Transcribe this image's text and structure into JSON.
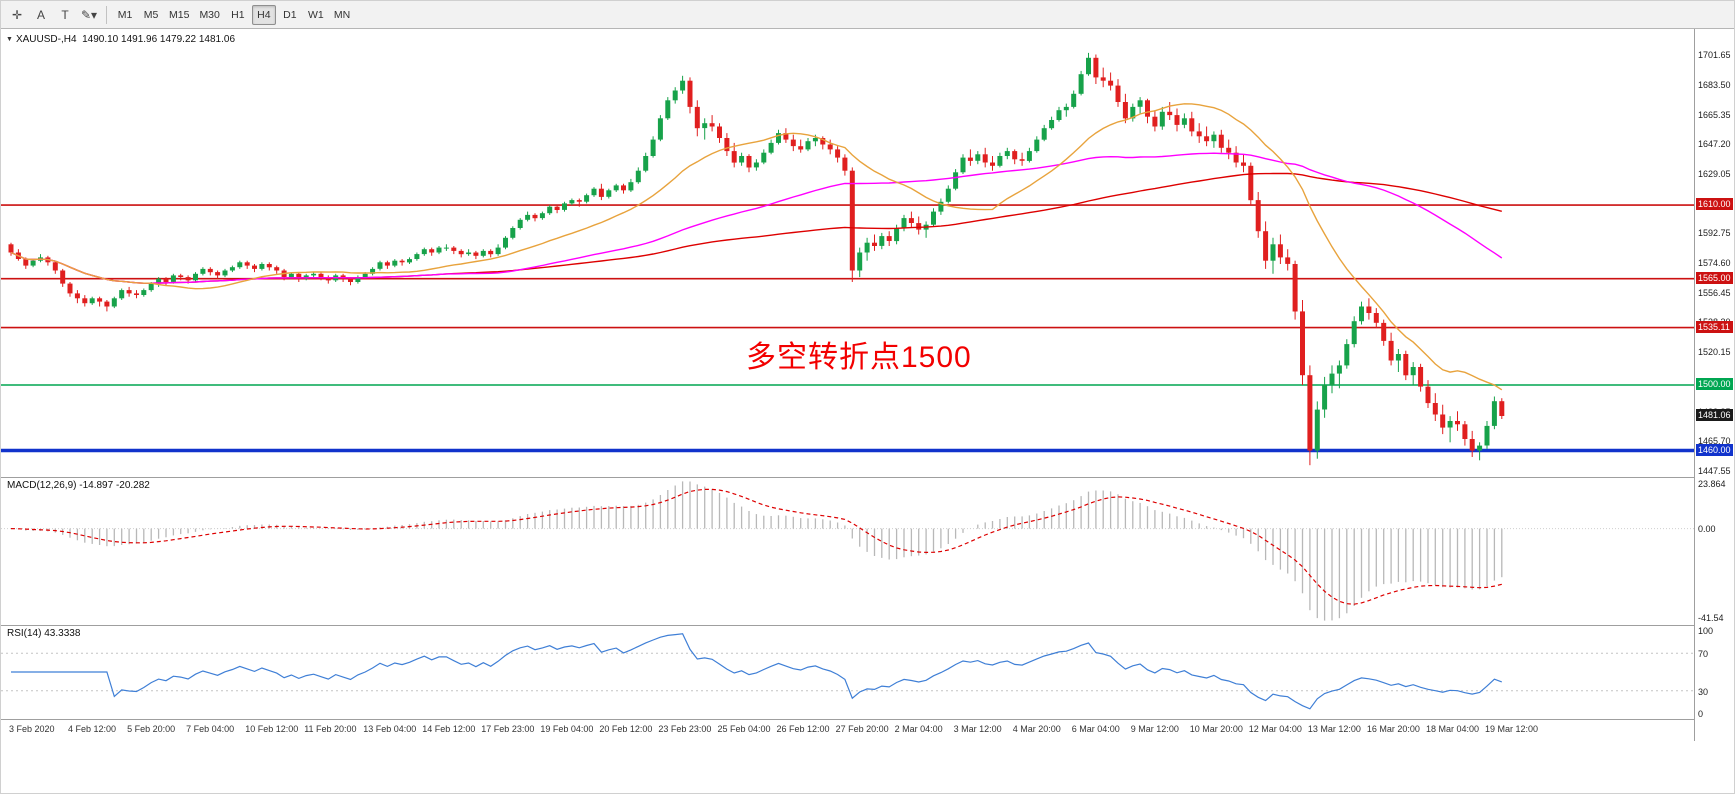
{
  "toolbar": {
    "left_buttons": [
      {
        "name": "cursor-tool",
        "glyph": "✛"
      },
      {
        "name": "text-a-tool",
        "glyph": "A"
      },
      {
        "name": "text-t-tool",
        "glyph": "T"
      },
      {
        "name": "draw-tool",
        "glyph": "✎",
        "caret": "▾"
      }
    ],
    "timeframes": [
      "M1",
      "M5",
      "M15",
      "M30",
      "H1",
      "H4",
      "D1",
      "W1",
      "MN"
    ],
    "active_timeframe": "H4"
  },
  "chart_header": {
    "dropdown_glyph": "▼",
    "symbol_timeframe": "XAUUSD-,H4",
    "ohlc": "1490.10 1491.96 1479.22 1481.06"
  },
  "annotation": {
    "text": "多空转折点1500"
  },
  "levels": [
    {
      "label": "1610.00",
      "value": 1610.0,
      "color": "#cc1111",
      "width": 1.6
    },
    {
      "label": "1565.00",
      "value": 1565.0,
      "color": "#cc1111",
      "width": 1.6
    },
    {
      "label": "1535.11",
      "value": 1535.11,
      "color": "#cc1111",
      "width": 1.6
    },
    {
      "label": "1500.00",
      "value": 1500.0,
      "color": "#00a651",
      "width": 1.6
    },
    {
      "label": "1460.00",
      "value": 1460.0,
      "color": "#1133cc",
      "width": 3.5
    }
  ],
  "current_price": {
    "label": "1481.06",
    "value": 1481.06,
    "tag_color": "#1a1a1a"
  },
  "price_axis": {
    "values": [
      1701.65,
      1683.5,
      1665.35,
      1647.2,
      1629.05,
      1610.9,
      1592.75,
      1574.6,
      1556.45,
      1538.3,
      1520.15,
      1502.0,
      1483.85,
      1465.7,
      1447.55
    ]
  },
  "colors": {
    "up": "#17a24a",
    "down": "#e01f1f",
    "ma_fast": "#e8a33d",
    "ma_mid": "#ff00ff",
    "ma_slow": "#dd0000",
    "macd_hist": "#b8b8b8",
    "macd_signal": "#dd0000",
    "rsi_line": "#3f7fd6",
    "annotation": "#f20000"
  },
  "chart_data": {
    "type": "candlestick",
    "symbol": "XAUUSD-",
    "timeframe": "H4",
    "ohlc_current": {
      "open": 1490.1,
      "high": 1491.96,
      "low": 1479.22,
      "close": 1481.06
    },
    "price_range": [
      1443.8,
      1717.6
    ],
    "candles": [
      [
        1586,
        1587,
        1579,
        1581
      ],
      [
        1581,
        1583,
        1576,
        1577
      ],
      [
        1577,
        1578,
        1571,
        1573
      ],
      [
        1573,
        1577,
        1572,
        1576
      ],
      [
        1576,
        1580,
        1575,
        1578
      ],
      [
        1578,
        1579,
        1573,
        1575
      ],
      [
        1575,
        1576,
        1568,
        1570
      ],
      [
        1570,
        1571,
        1560,
        1562
      ],
      [
        1562,
        1563,
        1554,
        1556
      ],
      [
        1556,
        1558,
        1550,
        1553
      ],
      [
        1553,
        1555,
        1548,
        1550
      ],
      [
        1550,
        1554,
        1549,
        1553
      ],
      [
        1553,
        1554,
        1548,
        1551
      ],
      [
        1551,
        1552,
        1545,
        1548
      ],
      [
        1548,
        1554,
        1547,
        1553
      ],
      [
        1553,
        1559,
        1552,
        1558
      ],
      [
        1558,
        1560,
        1554,
        1556
      ],
      [
        1556,
        1558,
        1553,
        1555
      ],
      [
        1555,
        1559,
        1554,
        1558
      ],
      [
        1558,
        1563,
        1557,
        1562
      ],
      [
        1562,
        1566,
        1560,
        1565
      ],
      [
        1565,
        1566,
        1561,
        1563
      ],
      [
        1563,
        1568,
        1562,
        1567
      ],
      [
        1567,
        1568,
        1564,
        1566
      ],
      [
        1566,
        1567,
        1562,
        1564
      ],
      [
        1564,
        1569,
        1563,
        1568
      ],
      [
        1568,
        1572,
        1567,
        1571
      ],
      [
        1571,
        1572,
        1567,
        1569
      ],
      [
        1569,
        1570,
        1565,
        1567
      ],
      [
        1567,
        1571,
        1566,
        1570
      ],
      [
        1570,
        1573,
        1569,
        1572
      ],
      [
        1572,
        1576,
        1571,
        1575
      ],
      [
        1575,
        1576,
        1571,
        1573
      ],
      [
        1573,
        1574,
        1569,
        1571
      ],
      [
        1571,
        1575,
        1570,
        1574
      ],
      [
        1574,
        1575,
        1570,
        1572
      ],
      [
        1572,
        1573,
        1568,
        1570
      ],
      [
        1570,
        1571,
        1564,
        1566
      ],
      [
        1566,
        1569,
        1565,
        1568
      ],
      [
        1568,
        1569,
        1563,
        1565
      ],
      [
        1565,
        1568,
        1564,
        1567
      ],
      [
        1567,
        1569,
        1566,
        1568
      ],
      [
        1568,
        1569,
        1564,
        1566
      ],
      [
        1566,
        1567,
        1562,
        1564
      ],
      [
        1564,
        1568,
        1563,
        1567
      ],
      [
        1567,
        1568,
        1563,
        1565
      ],
      [
        1565,
        1566,
        1561,
        1563
      ],
      [
        1563,
        1567,
        1562,
        1566
      ],
      [
        1566,
        1569,
        1565,
        1568
      ],
      [
        1568,
        1572,
        1567,
        1571
      ],
      [
        1571,
        1576,
        1570,
        1575
      ],
      [
        1575,
        1576,
        1571,
        1573
      ],
      [
        1573,
        1577,
        1572,
        1576
      ],
      [
        1576,
        1577,
        1573,
        1575
      ],
      [
        1575,
        1578,
        1574,
        1577
      ],
      [
        1577,
        1581,
        1576,
        1580
      ],
      [
        1580,
        1584,
        1579,
        1583
      ],
      [
        1583,
        1584,
        1579,
        1581
      ],
      [
        1581,
        1585,
        1580,
        1584
      ],
      [
        1584,
        1586,
        1582,
        1584
      ],
      [
        1584,
        1585,
        1580,
        1582
      ],
      [
        1582,
        1583,
        1578,
        1580
      ],
      [
        1580,
        1583,
        1579,
        1581
      ],
      [
        1581,
        1582,
        1577,
        1579
      ],
      [
        1579,
        1583,
        1578,
        1582
      ],
      [
        1582,
        1583,
        1578,
        1580
      ],
      [
        1580,
        1586,
        1579,
        1584
      ],
      [
        1584,
        1591,
        1583,
        1590
      ],
      [
        1590,
        1597,
        1589,
        1596
      ],
      [
        1596,
        1602,
        1595,
        1601
      ],
      [
        1601,
        1606,
        1600,
        1604
      ],
      [
        1604,
        1605,
        1600,
        1602
      ],
      [
        1602,
        1606,
        1601,
        1605
      ],
      [
        1605,
        1610,
        1604,
        1609
      ],
      [
        1609,
        1610,
        1605,
        1607
      ],
      [
        1607,
        1612,
        1606,
        1611
      ],
      [
        1611,
        1614,
        1610,
        1613
      ],
      [
        1613,
        1614,
        1609,
        1612
      ],
      [
        1612,
        1617,
        1611,
        1616
      ],
      [
        1616,
        1621,
        1615,
        1620
      ],
      [
        1620,
        1623,
        1613,
        1615
      ],
      [
        1615,
        1620,
        1614,
        1619
      ],
      [
        1619,
        1623,
        1618,
        1622
      ],
      [
        1622,
        1623,
        1617,
        1619
      ],
      [
        1619,
        1626,
        1618,
        1624
      ],
      [
        1624,
        1633,
        1623,
        1631
      ],
      [
        1631,
        1642,
        1630,
        1640
      ],
      [
        1640,
        1652,
        1639,
        1650
      ],
      [
        1650,
        1665,
        1649,
        1663
      ],
      [
        1663,
        1676,
        1662,
        1674
      ],
      [
        1674,
        1682,
        1672,
        1680
      ],
      [
        1680,
        1689,
        1678,
        1686
      ],
      [
        1686,
        1688,
        1666,
        1670
      ],
      [
        1670,
        1674,
        1652,
        1657
      ],
      [
        1657,
        1663,
        1650,
        1660
      ],
      [
        1660,
        1665,
        1655,
        1658
      ],
      [
        1658,
        1660,
        1648,
        1651
      ],
      [
        1651,
        1654,
        1640,
        1643
      ],
      [
        1643,
        1648,
        1633,
        1636
      ],
      [
        1636,
        1642,
        1634,
        1640
      ],
      [
        1640,
        1641,
        1630,
        1633
      ],
      [
        1633,
        1638,
        1631,
        1636
      ],
      [
        1636,
        1644,
        1635,
        1642
      ],
      [
        1642,
        1650,
        1641,
        1648
      ],
      [
        1648,
        1656,
        1647,
        1654
      ],
      [
        1654,
        1657,
        1648,
        1650
      ],
      [
        1650,
        1653,
        1643,
        1646
      ],
      [
        1646,
        1650,
        1642,
        1644
      ],
      [
        1644,
        1651,
        1643,
        1649
      ],
      [
        1649,
        1653,
        1646,
        1651
      ],
      [
        1651,
        1652,
        1644,
        1647
      ],
      [
        1647,
        1650,
        1641,
        1644
      ],
      [
        1644,
        1646,
        1636,
        1639
      ],
      [
        1639,
        1641,
        1628,
        1631
      ],
      [
        1631,
        1633,
        1563,
        1570
      ],
      [
        1570,
        1584,
        1566,
        1581
      ],
      [
        1581,
        1590,
        1576,
        1587
      ],
      [
        1587,
        1592,
        1582,
        1585
      ],
      [
        1585,
        1593,
        1583,
        1591
      ],
      [
        1591,
        1594,
        1585,
        1588
      ],
      [
        1588,
        1598,
        1586,
        1596
      ],
      [
        1596,
        1604,
        1594,
        1602
      ],
      [
        1602,
        1606,
        1596,
        1599
      ],
      [
        1599,
        1603,
        1592,
        1595
      ],
      [
        1595,
        1600,
        1590,
        1598
      ],
      [
        1598,
        1608,
        1597,
        1606
      ],
      [
        1606,
        1614,
        1604,
        1612
      ],
      [
        1612,
        1622,
        1611,
        1620
      ],
      [
        1620,
        1632,
        1619,
        1630
      ],
      [
        1630,
        1641,
        1629,
        1639
      ],
      [
        1639,
        1644,
        1634,
        1637
      ],
      [
        1637,
        1643,
        1635,
        1641
      ],
      [
        1641,
        1645,
        1633,
        1636
      ],
      [
        1636,
        1640,
        1631,
        1634
      ],
      [
        1634,
        1642,
        1633,
        1640
      ],
      [
        1640,
        1645,
        1638,
        1643
      ],
      [
        1643,
        1644,
        1635,
        1638
      ],
      [
        1638,
        1642,
        1634,
        1637
      ],
      [
        1637,
        1645,
        1636,
        1643
      ],
      [
        1643,
        1652,
        1642,
        1650
      ],
      [
        1650,
        1659,
        1649,
        1657
      ],
      [
        1657,
        1664,
        1656,
        1662
      ],
      [
        1662,
        1670,
        1661,
        1668
      ],
      [
        1668,
        1672,
        1664,
        1670
      ],
      [
        1670,
        1680,
        1669,
        1678
      ],
      [
        1678,
        1692,
        1677,
        1690
      ],
      [
        1690,
        1703,
        1689,
        1700
      ],
      [
        1700,
        1702,
        1684,
        1688
      ],
      [
        1688,
        1694,
        1682,
        1686
      ],
      [
        1686,
        1691,
        1680,
        1683
      ],
      [
        1683,
        1687,
        1670,
        1673
      ],
      [
        1673,
        1678,
        1660,
        1663
      ],
      [
        1663,
        1672,
        1661,
        1670
      ],
      [
        1670,
        1676,
        1666,
        1674
      ],
      [
        1674,
        1675,
        1660,
        1664
      ],
      [
        1664,
        1668,
        1655,
        1658
      ],
      [
        1658,
        1670,
        1656,
        1667
      ],
      [
        1667,
        1673,
        1662,
        1665
      ],
      [
        1665,
        1669,
        1655,
        1659
      ],
      [
        1659,
        1666,
        1657,
        1663
      ],
      [
        1663,
        1667,
        1652,
        1655
      ],
      [
        1655,
        1660,
        1648,
        1652
      ],
      [
        1652,
        1658,
        1646,
        1649
      ],
      [
        1649,
        1655,
        1645,
        1653
      ],
      [
        1653,
        1656,
        1642,
        1645
      ],
      [
        1645,
        1650,
        1638,
        1642
      ],
      [
        1642,
        1646,
        1633,
        1636
      ],
      [
        1636,
        1641,
        1630,
        1634
      ],
      [
        1634,
        1636,
        1610,
        1613
      ],
      [
        1613,
        1618,
        1590,
        1594
      ],
      [
        1594,
        1600,
        1571,
        1576
      ],
      [
        1576,
        1590,
        1568,
        1586
      ],
      [
        1586,
        1592,
        1574,
        1578
      ],
      [
        1578,
        1583,
        1570,
        1574
      ],
      [
        1574,
        1576,
        1540,
        1545
      ],
      [
        1545,
        1552,
        1500,
        1506
      ],
      [
        1506,
        1512,
        1451,
        1460
      ],
      [
        1460,
        1490,
        1455,
        1485
      ],
      [
        1485,
        1505,
        1480,
        1500
      ],
      [
        1500,
        1512,
        1495,
        1507
      ],
      [
        1507,
        1515,
        1498,
        1512
      ],
      [
        1512,
        1528,
        1510,
        1525
      ],
      [
        1525,
        1542,
        1523,
        1539
      ],
      [
        1539,
        1551,
        1537,
        1548
      ],
      [
        1548,
        1553,
        1540,
        1544
      ],
      [
        1544,
        1547,
        1535,
        1538
      ],
      [
        1538,
        1540,
        1524,
        1527
      ],
      [
        1527,
        1532,
        1512,
        1515
      ],
      [
        1515,
        1522,
        1508,
        1519
      ],
      [
        1519,
        1521,
        1503,
        1506
      ],
      [
        1506,
        1514,
        1500,
        1511
      ],
      [
        1511,
        1513,
        1496,
        1499
      ],
      [
        1499,
        1503,
        1486,
        1489
      ],
      [
        1489,
        1495,
        1478,
        1482
      ],
      [
        1482,
        1488,
        1470,
        1474
      ],
      [
        1474,
        1481,
        1465,
        1478
      ],
      [
        1478,
        1484,
        1472,
        1476
      ],
      [
        1476,
        1478,
        1463,
        1467
      ],
      [
        1467,
        1472,
        1456,
        1460
      ],
      [
        1460,
        1465,
        1454,
        1463
      ],
      [
        1463,
        1478,
        1461,
        1475
      ],
      [
        1475,
        1493,
        1473,
        1490.1
      ],
      [
        1490.1,
        1491.96,
        1479.22,
        1481.06
      ]
    ],
    "date_labels": [
      "3 Feb 2020",
      "4 Feb 12:00",
      "5 Feb 20:00",
      "7 Feb 04:00",
      "10 Feb 12:00",
      "11 Feb 20:00",
      "13 Feb 04:00",
      "14 Feb 12:00",
      "17 Feb 23:00",
      "19 Feb 04:00",
      "20 Feb 12:00",
      "23 Feb 23:00",
      "25 Feb 04:00",
      "26 Feb 12:00",
      "27 Feb 20:00",
      "2 Mar 04:00",
      "3 Mar 12:00",
      "4 Mar 20:00",
      "6 Mar 04:00",
      "9 Mar 12:00",
      "10 Mar 20:00",
      "12 Mar 04:00",
      "13 Mar 12:00",
      "16 Mar 20:00",
      "18 Mar 04:00",
      "19 Mar 12:00"
    ],
    "moving_averages": [
      {
        "name": "ma-fast",
        "period": 20,
        "color_key": "ma_fast"
      },
      {
        "name": "ma-mid",
        "period": 60,
        "color_key": "ma_mid"
      },
      {
        "name": "ma-slow",
        "period": 120,
        "color_key": "ma_slow"
      }
    ],
    "macd": {
      "label": "MACD(12,26,9)",
      "values_text": "-14.897 -20.282",
      "fast": 12,
      "slow": 26,
      "signal": 9,
      "axis_labels": [
        "23.864",
        "0.00",
        "-41.54"
      ]
    },
    "rsi": {
      "label": "RSI(14)",
      "value_text": "43.3338",
      "period": 14,
      "levels": [
        70,
        30
      ],
      "axis_labels": [
        100,
        70,
        30,
        0
      ]
    }
  }
}
